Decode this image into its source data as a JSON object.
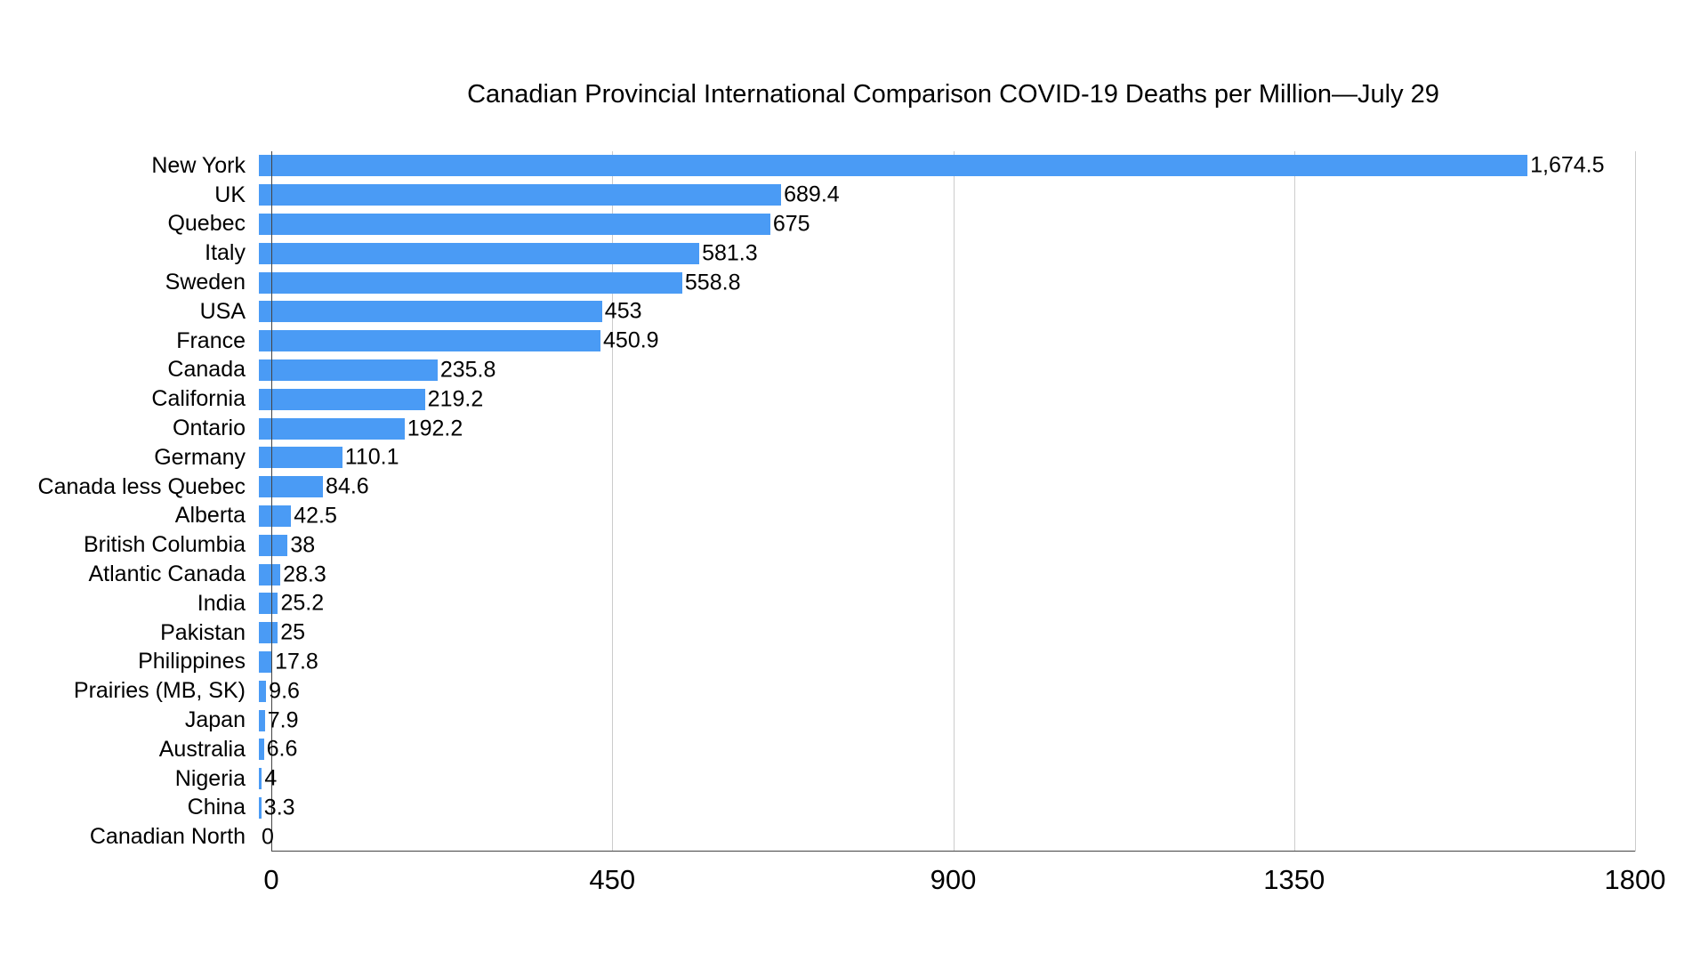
{
  "page": {
    "background": "#ffffff"
  },
  "chart_data": {
    "type": "bar",
    "orientation": "horizontal",
    "title": "Canadian Provincial International Comparison COVID-19 Deaths per Million—July 29",
    "categories": [
      "New York",
      "UK",
      "Quebec",
      "Italy",
      "Sweden",
      "USA",
      "France",
      "Canada",
      "California",
      "Ontario",
      "Germany",
      "Canada less Quebec",
      "Alberta",
      "British Columbia",
      "Atlantic Canada",
      "India",
      "Pakistan",
      "Philippines",
      "Prairies (MB, SK)",
      "Japan",
      "Australia",
      "Nigeria",
      "China",
      "Canadian North"
    ],
    "values": [
      1674.5,
      689.4,
      675,
      581.3,
      558.8,
      453,
      450.9,
      235.8,
      219.2,
      192.2,
      110.1,
      84.6,
      42.5,
      38,
      28.3,
      25.2,
      25,
      17.8,
      9.6,
      7.9,
      6.6,
      4,
      3.3,
      0
    ],
    "value_labels": [
      "1,674.5",
      "689.4",
      "675",
      "581.3",
      "558.8",
      "453",
      "450.9",
      "235.8",
      "219.2",
      "192.2",
      "110.1",
      "84.6",
      "42.5",
      "38",
      "28.3",
      "25.2",
      "25",
      "17.8",
      "9.6",
      "7.9",
      "6.6",
      "4",
      "3.3",
      "0"
    ],
    "xlabel": "",
    "ylabel": "",
    "xlim": [
      0,
      1800
    ],
    "x_ticks": [
      "0",
      "450",
      "900",
      "1350",
      "1800"
    ],
    "grid": true,
    "legend_position": "none",
    "bar_color": "#4a9bf5",
    "gridline_color": "#cccccc",
    "axis_color": "#444444",
    "text_color": "#000000"
  }
}
